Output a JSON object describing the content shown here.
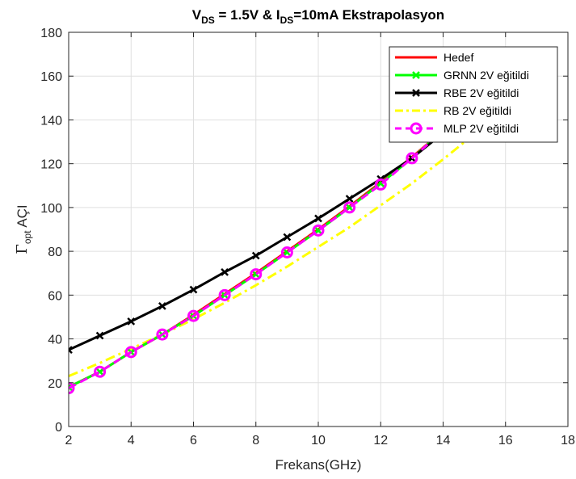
{
  "chart_data": {
    "type": "line",
    "title": {
      "parts": [
        {
          "text": "V",
          "sub": false
        },
        {
          "text": "DS",
          "sub": true
        },
        {
          "text": " = 1.5V & I",
          "sub": false
        },
        {
          "text": "DS",
          "sub": true
        },
        {
          "text": "=10mA Ekstrapolasyon",
          "sub": false
        }
      ]
    },
    "xlabel": "Frekans(GHz)",
    "ylabel": {
      "symbol": "Γ",
      "sub": "opt",
      "rest": " AÇI"
    },
    "xlim": [
      2,
      18
    ],
    "ylim": [
      0,
      180
    ],
    "xticks": [
      2,
      4,
      6,
      8,
      10,
      12,
      14,
      16,
      18
    ],
    "yticks": [
      0,
      20,
      40,
      60,
      80,
      100,
      120,
      140,
      160,
      180
    ],
    "grid": true,
    "legend_position": "top-right",
    "series": [
      {
        "name": "Hedef",
        "color": "#ff0000",
        "style": "solid",
        "marker": "none",
        "x": [
          2,
          3,
          4,
          5,
          6,
          7,
          8,
          9,
          10,
          11,
          12,
          13,
          14
        ],
        "y": [
          18,
          25,
          34,
          42,
          51,
          60.5,
          70,
          80,
          90,
          100.5,
          111.5,
          123,
          135
        ]
      },
      {
        "name": "GRNN 2V eğitildi",
        "color": "#00ff00",
        "style": "solid",
        "marker": "x",
        "x": [
          2,
          3,
          4,
          5,
          6,
          7,
          8,
          9,
          10,
          11,
          12,
          13,
          14
        ],
        "y": [
          18,
          25,
          34,
          42,
          50.5,
          60,
          69.5,
          79.5,
          89.5,
          100,
          111,
          122.5,
          135
        ]
      },
      {
        "name": "RBE 2V eğitildi",
        "color": "#000000",
        "style": "solid",
        "marker": "x",
        "x": [
          2,
          3,
          4,
          5,
          6,
          7,
          8,
          9,
          10,
          11,
          12,
          13,
          14
        ],
        "y": [
          35,
          41.5,
          48,
          55,
          62.5,
          70.5,
          78,
          86.5,
          95,
          104,
          113,
          122.5,
          134
        ]
      },
      {
        "name": "RB 2V eğitildi",
        "color": "#ffff00",
        "style": "dashdot",
        "marker": "none",
        "x": [
          2,
          3,
          4,
          5,
          6,
          7,
          8,
          9,
          10,
          11,
          12,
          13,
          14,
          15,
          15.8
        ],
        "y": [
          23,
          29,
          35.5,
          42,
          49,
          56.5,
          64.5,
          73,
          82,
          91,
          101,
          111,
          122,
          133.5,
          143
        ]
      },
      {
        "name": "MLP 2V eğitildi",
        "color": "#ff00ff",
        "style": "dashed",
        "marker": "o",
        "x": [
          2,
          3,
          4,
          5,
          6,
          7,
          8,
          9,
          10,
          11,
          12,
          13,
          14
        ],
        "y": [
          17.5,
          25,
          34,
          42,
          50.5,
          60,
          69.5,
          79.5,
          89.5,
          100,
          110.5,
          122.5,
          135
        ]
      }
    ]
  }
}
